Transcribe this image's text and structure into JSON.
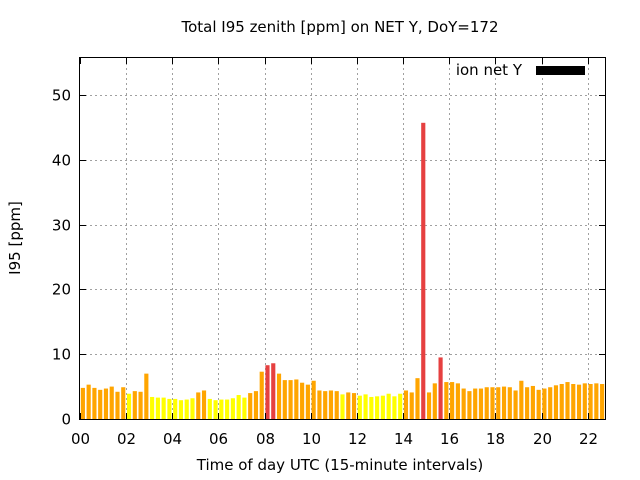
{
  "chart_data": {
    "type": "bar",
    "title": "Total I95 zenith [ppm] on NET Y, DoY=172",
    "xlabel": "Time of day UTC (15-minute intervals)",
    "ylabel": "I95 [ppm]",
    "xlim": [
      0,
      22.75
    ],
    "ylim": [
      0,
      55.7
    ],
    "x_tick_labels": [
      "00",
      "02",
      "04",
      "06",
      "08",
      "10",
      "12",
      "14",
      "16",
      "18",
      "20",
      "22"
    ],
    "x_tick_values": [
      0,
      2,
      4,
      6,
      8,
      10,
      12,
      14,
      16,
      18,
      20,
      22
    ],
    "y_tick_values": [
      0,
      10,
      20,
      30,
      40,
      50
    ],
    "grid": true,
    "legend": {
      "label": "ion net Y",
      "color": "#000000",
      "placement": "top-right"
    },
    "interval_hours": 0.25,
    "color_scale": {
      "low": "#ffff00",
      "mid": "#ffa500",
      "high": "#e64040"
    },
    "color_breaks": [
      4,
      8
    ],
    "values": [
      4.8,
      5.3,
      4.8,
      4.5,
      4.7,
      5.0,
      4.2,
      4.9,
      3.9,
      4.3,
      4.2,
      7.0,
      3.4,
      3.3,
      3.3,
      3.1,
      3.1,
      2.9,
      3.0,
      3.2,
      4.1,
      4.4,
      3.1,
      2.9,
      3.0,
      3.0,
      3.2,
      3.7,
      3.3,
      4.0,
      4.3,
      7.3,
      8.3,
      8.6,
      7.0,
      6.0,
      6.0,
      6.1,
      5.6,
      5.3,
      5.9,
      4.4,
      4.3,
      4.4,
      4.3,
      3.8,
      4.1,
      4.0,
      3.6,
      3.8,
      3.4,
      3.5,
      3.6,
      3.9,
      3.5,
      3.9,
      4.4,
      4.1,
      6.3,
      45.7,
      4.1,
      5.5,
      9.5,
      5.7,
      5.7,
      5.5,
      4.7,
      4.3,
      4.7,
      4.7,
      4.9,
      4.9,
      4.9,
      5.0,
      4.9,
      4.4,
      5.9,
      4.9,
      5.1,
      4.5,
      4.7,
      4.9,
      5.2,
      5.4,
      5.7,
      5.4,
      5.3,
      5.5,
      5.4,
      5.5,
      5.4
    ]
  }
}
